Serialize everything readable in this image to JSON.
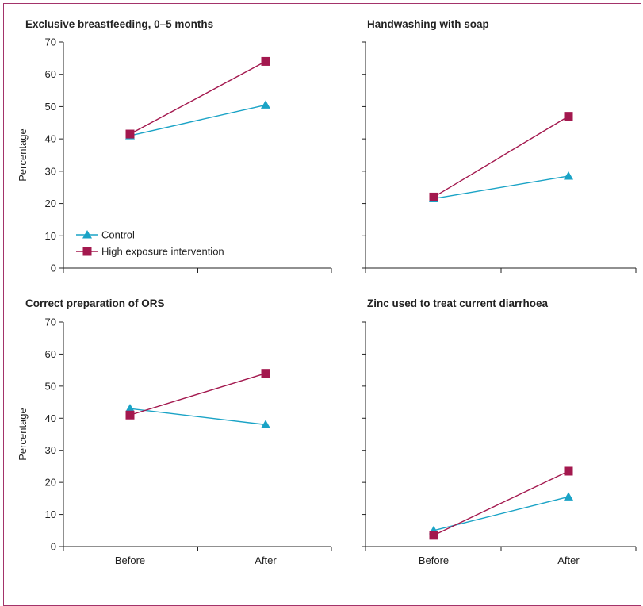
{
  "colors": {
    "control": "#1aa3c6",
    "intervention": "#a3184e",
    "axis": "#222222",
    "frame": "#a3336a"
  },
  "chart_data": [
    {
      "type": "line",
      "title": "Exclusive breastfeeding, 0–5 months",
      "ylabel": "Percentage",
      "xlabel": "",
      "categories": [
        "Before",
        "After"
      ],
      "ylim": [
        0,
        70
      ],
      "yticks": [
        "0",
        "10",
        "20",
        "30",
        "40",
        "50",
        "60",
        "70"
      ],
      "series": [
        {
          "name": "Control",
          "marker": "triangle",
          "values": [
            41,
            50.5
          ]
        },
        {
          "name": "High exposure intervention",
          "marker": "square",
          "values": [
            41.5,
            64
          ]
        }
      ],
      "legend": "bottom-left"
    },
    {
      "type": "line",
      "title": "Handwashing with soap",
      "ylabel": "",
      "xlabel": "",
      "categories": [
        "Before",
        "After"
      ],
      "ylim": [
        0,
        70
      ],
      "series": [
        {
          "name": "Control",
          "marker": "triangle",
          "values": [
            21.5,
            28.5
          ]
        },
        {
          "name": "High exposure intervention",
          "marker": "square",
          "values": [
            22,
            47
          ]
        }
      ]
    },
    {
      "type": "line",
      "title": "Correct preparation of ORS",
      "ylabel": "Percentage",
      "xlabel": "",
      "categories": [
        "Before",
        "After"
      ],
      "ylim": [
        0,
        70
      ],
      "yticks": [
        "0",
        "10",
        "20",
        "30",
        "40",
        "50",
        "60",
        "70"
      ],
      "xticklabels": [
        "Before",
        "After"
      ],
      "series": [
        {
          "name": "Control",
          "marker": "triangle",
          "values": [
            43,
            38
          ]
        },
        {
          "name": "High exposure intervention",
          "marker": "square",
          "values": [
            41,
            54
          ]
        }
      ]
    },
    {
      "type": "line",
      "title": "Zinc used to treat current diarrhoea",
      "ylabel": "",
      "xlabel": "",
      "categories": [
        "Before",
        "After"
      ],
      "ylim": [
        0,
        70
      ],
      "xticklabels": [
        "Before",
        "After"
      ],
      "series": [
        {
          "name": "Control",
          "marker": "triangle",
          "values": [
            5,
            15.5
          ]
        },
        {
          "name": "High exposure intervention",
          "marker": "square",
          "values": [
            3.5,
            23.5
          ]
        }
      ]
    }
  ]
}
